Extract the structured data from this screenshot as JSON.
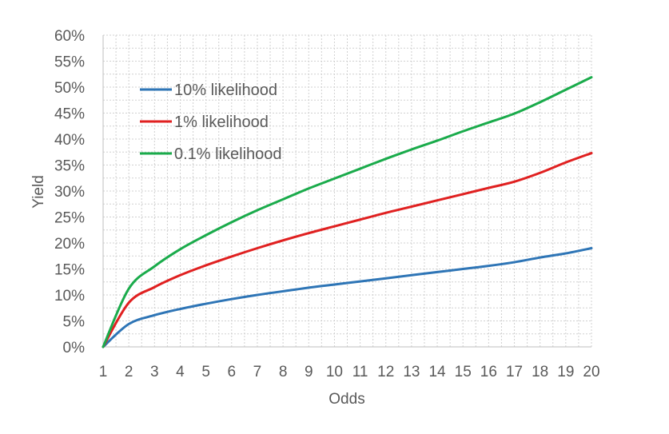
{
  "chart_data": {
    "type": "line",
    "xlabel": "Odds",
    "ylabel": "Yield",
    "xlim": [
      1,
      20
    ],
    "ylim": [
      0,
      0.6
    ],
    "x_ticks": [
      1,
      2,
      3,
      4,
      5,
      6,
      7,
      8,
      9,
      10,
      11,
      12,
      13,
      14,
      15,
      16,
      17,
      18,
      19,
      20
    ],
    "x_tick_labels": [
      "1",
      "2",
      "3",
      "4",
      "5",
      "6",
      "7",
      "8",
      "9",
      "10",
      "11",
      "12",
      "13",
      "14",
      "15",
      "16",
      "17",
      "18",
      "19",
      "20"
    ],
    "y_ticks": [
      0,
      0.05,
      0.1,
      0.15,
      0.2,
      0.25,
      0.3,
      0.35,
      0.4,
      0.45,
      0.5,
      0.55,
      0.6
    ],
    "y_tick_labels": [
      "0%",
      "5%",
      "10%",
      "15%",
      "20%",
      "25%",
      "30%",
      "35%",
      "40%",
      "45%",
      "50%",
      "55%",
      "60%"
    ],
    "grid": true,
    "legend_position": "top-left",
    "x": [
      1,
      2,
      3,
      4,
      5,
      6,
      7,
      8,
      9,
      10,
      11,
      12,
      13,
      14,
      15,
      16,
      17,
      18,
      19,
      20
    ],
    "series": [
      {
        "name": "10% likelihood",
        "color": "#2e75b6",
        "values": [
          0.0,
          0.044,
          0.061,
          0.073,
          0.083,
          0.092,
          0.1,
          0.107,
          0.114,
          0.12,
          0.126,
          0.132,
          0.138,
          0.144,
          0.15,
          0.156,
          0.163,
          0.172,
          0.18,
          0.19
        ]
      },
      {
        "name": "1% likelihood",
        "color": "#e02020",
        "values": [
          0.0,
          0.085,
          0.115,
          0.138,
          0.157,
          0.174,
          0.19,
          0.205,
          0.219,
          0.232,
          0.245,
          0.258,
          0.27,
          0.282,
          0.294,
          0.306,
          0.318,
          0.335,
          0.355,
          0.373
        ]
      },
      {
        "name": "0.1% likelihood",
        "color": "#1aab4b",
        "values": [
          0.0,
          0.112,
          0.155,
          0.188,
          0.215,
          0.24,
          0.263,
          0.284,
          0.305,
          0.324,
          0.343,
          0.362,
          0.38,
          0.397,
          0.415,
          0.432,
          0.449,
          0.471,
          0.495,
          0.519
        ]
      }
    ]
  }
}
